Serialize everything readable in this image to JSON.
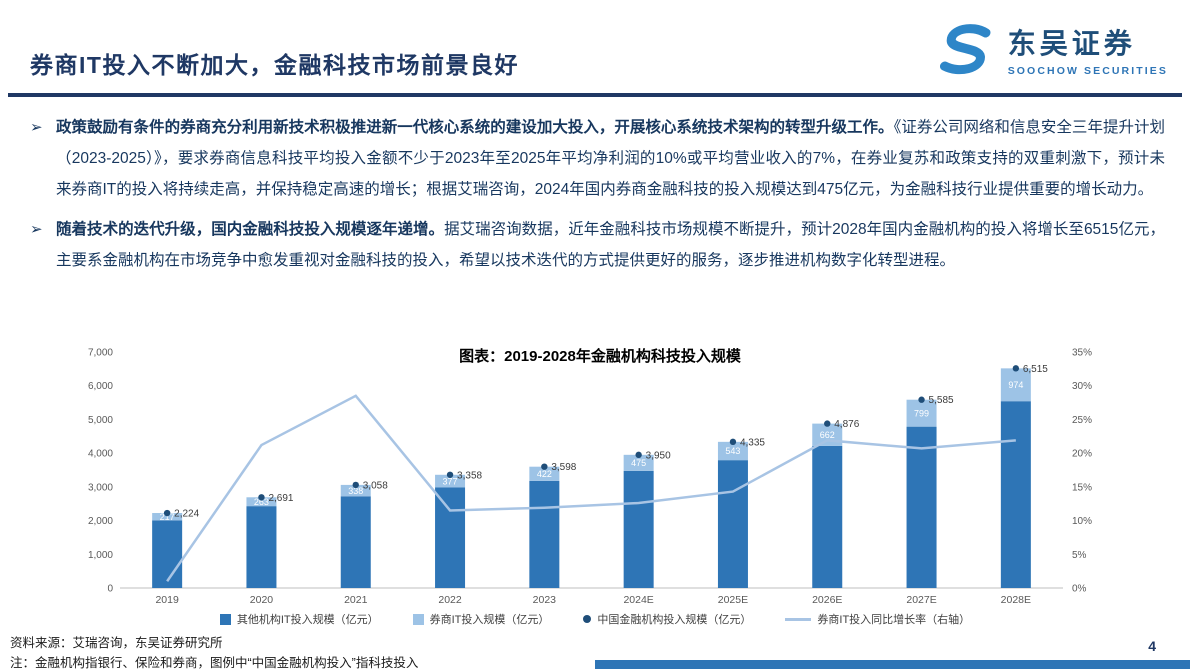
{
  "header": {
    "title": "券商IT投入不断加大，金融科技市场前景良好",
    "logo": {
      "name": "东吴证券",
      "subtitle": "SOOCHOW SECURITIES"
    }
  },
  "bullet_marker": "➢",
  "bullets": [
    {
      "lead": "政策鼓励有条件的券商充分利用新技术积极推进新一代核心系统的建设加大投入，开展核心系统技术架构的转型升级工作。",
      "rest": "《证券公司网络和信息安全三年提升计划（2023-2025）》，要求券商信息科技平均投入金额不少于2023年至2025年平均净利润的10%或平均营业收入的7%，在券业复苏和政策支持的双重刺激下，预计未来券商IT的投入将持续走高，并保持稳定高速的增长；根据艾瑞咨询，2024年国内券商金融科技的投入规模达到475亿元，为金融科技行业提供重要的增长动力。"
    },
    {
      "lead": "随着技术的迭代升级，国内金融科技投入规模逐年递增。",
      "rest": "据艾瑞咨询数据，近年金融科技市场规模不断提升，预计2028年国内金融机构的投入将增长至6515亿元，主要系金融机构在市场竞争中愈发重视对金融科技的投入，希望以技术迭代的方式提供更好的服务，逐步推进机构数字化转型进程。"
    }
  ],
  "chart_data": {
    "type": "bar",
    "title": "图表：2019-2028年金融机构科技投入规模",
    "categories": [
      "2019",
      "2020",
      "2021",
      "2022",
      "2023",
      "2024E",
      "2025E",
      "2026E",
      "2027E",
      "2028E"
    ],
    "series": [
      {
        "name": "其他机构IT投入规模（亿元）",
        "type": "bar-segment",
        "color": "#2E75B6",
        "values": [
          2007,
          2428,
          2720,
          2981,
          3176,
          3475,
          3792,
          4214,
          4786,
          5541
        ]
      },
      {
        "name": "券商IT投入规模（亿元）",
        "type": "bar-segment",
        "color": "#9DC3E6",
        "values": [
          217,
          263,
          338,
          377,
          422,
          475,
          543,
          662,
          799,
          974
        ]
      },
      {
        "name": "中国金融机构投入规模（亿元）",
        "type": "point",
        "color": "#1F4E79",
        "values": [
          2224,
          2691,
          3058,
          3358,
          3598,
          3950,
          4335,
          4876,
          5585,
          6515
        ]
      },
      {
        "name": "券商IT投入同比增长率（右轴）",
        "type": "line",
        "color": "#A8C4E4",
        "axis": "right",
        "values": [
          1.0,
          21.2,
          28.5,
          11.5,
          11.9,
          12.6,
          14.3,
          21.9,
          20.7,
          21.9
        ]
      }
    ],
    "left_axis": {
      "min": 0,
      "max": 7000,
      "step": 1000
    },
    "right_axis": {
      "min": 0,
      "max": 35,
      "step": 5,
      "suffix": "%"
    },
    "legend_position": "bottom",
    "grid": false,
    "stacked": true
  },
  "footer": {
    "source": "资料来源：艾瑞咨询，东吴证券研究所",
    "note": "注：金融机构指银行、保险和券商，图例中“中国金融机构投入”指科技投入",
    "page_number": "4"
  },
  "colors": {
    "title_navy": "#1F3864",
    "text_navy": "#17375E",
    "bar_dark": "#2E75B6",
    "bar_light": "#9DC3E6",
    "dot_navy": "#1F4E79",
    "line_light_blue": "#A8C4E4",
    "footer_bar": "#2E75B6"
  }
}
